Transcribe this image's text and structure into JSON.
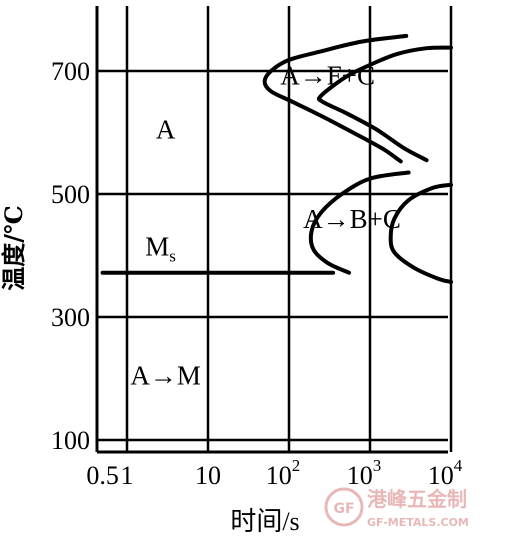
{
  "chart_data": {
    "type": "line",
    "xlabel": "时间/s",
    "ylabel": "温度/℃",
    "xscale": "log",
    "xlim": [
      0.5,
      10000
    ],
    "ylim": [
      80,
      800
    ],
    "x_ticks": [
      {
        "value": 0.5,
        "label": "0.5"
      },
      {
        "value": 1,
        "label": "1"
      },
      {
        "value": 10,
        "label": "10"
      },
      {
        "value": 100,
        "label": "10",
        "exp": "2"
      },
      {
        "value": 1000,
        "label": "10",
        "exp": "3"
      },
      {
        "value": 10000,
        "label": "10",
        "exp": "4"
      }
    ],
    "y_ticks": [
      {
        "value": 100,
        "label": "100"
      },
      {
        "value": 300,
        "label": "300"
      },
      {
        "value": 500,
        "label": "500"
      },
      {
        "value": 700,
        "label": "700"
      }
    ],
    "grid": true,
    "series": [
      {
        "id": "pearlite-start",
        "points": [
          [
            2800,
            757
          ],
          [
            800,
            748
          ],
          [
            250,
            732
          ],
          [
            100,
            718
          ],
          [
            60,
            700
          ],
          [
            50,
            683
          ],
          [
            60,
            667
          ],
          [
            110,
            650
          ],
          [
            250,
            627
          ],
          [
            800,
            592
          ],
          [
            1500,
            572
          ],
          [
            2400,
            553
          ]
        ]
      },
      {
        "id": "pearlite-finish",
        "points": [
          [
            10000,
            738
          ],
          [
            5000,
            737
          ],
          [
            2200,
            728
          ],
          [
            1000,
            710
          ],
          [
            500,
            690
          ],
          [
            250,
            660
          ],
          [
            260,
            650
          ],
          [
            500,
            632
          ],
          [
            1200,
            605
          ],
          [
            2600,
            575
          ],
          [
            5000,
            555
          ]
        ]
      },
      {
        "id": "bainite-start",
        "points": [
          [
            3000,
            535
          ],
          [
            1000,
            525
          ],
          [
            450,
            500
          ],
          [
            250,
            470
          ],
          [
            190,
            440
          ],
          [
            200,
            410
          ],
          [
            300,
            388
          ],
          [
            550,
            372
          ]
        ]
      },
      {
        "id": "bainite-finish",
        "points": [
          [
            10000,
            515
          ],
          [
            6000,
            510
          ],
          [
            3000,
            490
          ],
          [
            2000,
            460
          ],
          [
            1800,
            430
          ],
          [
            2000,
            405
          ],
          [
            3500,
            380
          ],
          [
            7000,
            362
          ],
          [
            10000,
            357
          ]
        ]
      },
      {
        "id": "ms-line",
        "points": [
          [
            0.5,
            372
          ],
          [
            350,
            372
          ]
        ]
      }
    ],
    "annotations": [
      {
        "text": "A→F+C",
        "x": 300,
        "y": 678
      },
      {
        "text": "A",
        "x": 3,
        "y": 590
      },
      {
        "text": "A→B+C",
        "x": 600,
        "y": 445
      },
      {
        "text": "M",
        "sub": "s",
        "x": 2.6,
        "y": 400
      },
      {
        "text": "A→M",
        "x": 3,
        "y": 190
      }
    ]
  },
  "watermark": {
    "cn": "港峰五金制",
    "en": "GF-METALS.COM"
  }
}
